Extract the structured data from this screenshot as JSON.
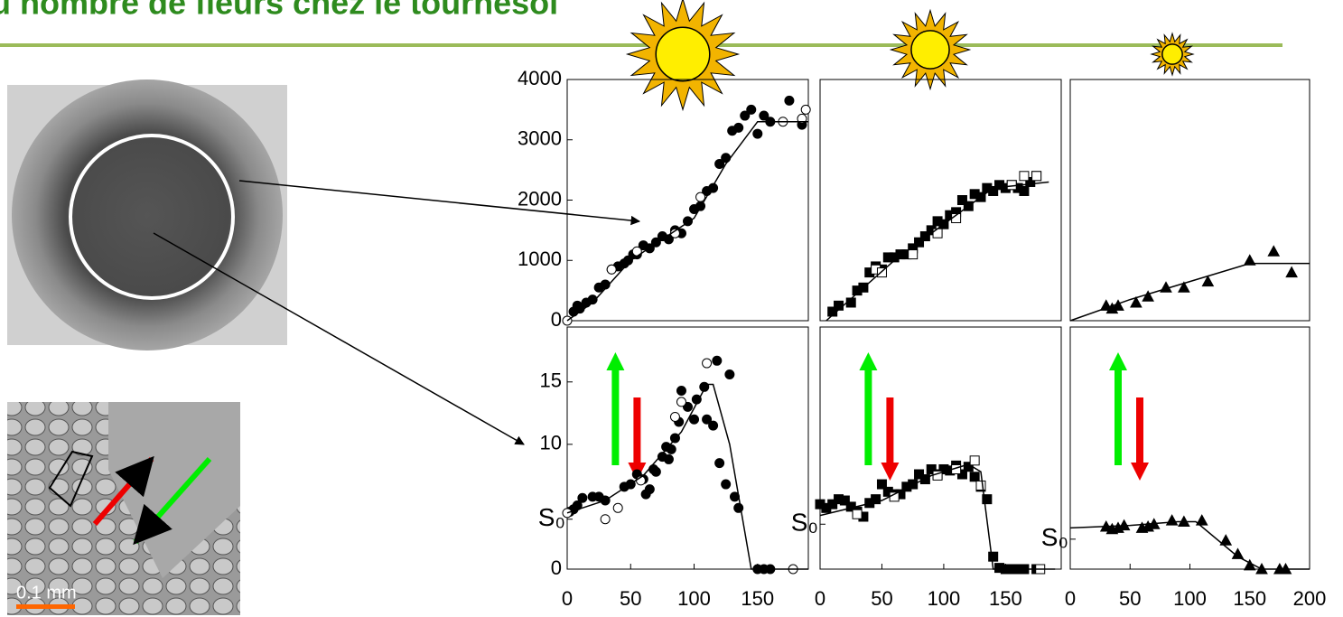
{
  "title": "u nombre de fleurs chez le tournesol",
  "scale_bar": "0.1 mm",
  "chart_data": [
    {
      "type": "scatter",
      "xlim": [
        0,
        190
      ],
      "ylim": [
        0,
        4000
      ],
      "yticks": [
        0,
        1000,
        2000,
        3000,
        4000
      ],
      "series": [
        {
          "marker": "circle",
          "filled": true,
          "color": "#000000",
          "x": [
            5,
            8,
            10,
            15,
            20,
            25,
            30,
            35,
            40,
            45,
            48,
            52,
            55,
            60,
            65,
            70,
            75,
            80,
            85,
            90,
            95,
            100,
            105,
            110,
            115,
            120,
            125,
            130,
            135,
            140,
            145,
            150,
            155,
            160,
            175,
            185
          ],
          "values": [
            150,
            250,
            200,
            300,
            350,
            550,
            600,
            850,
            900,
            950,
            1000,
            1100,
            1100,
            1250,
            1200,
            1300,
            1400,
            1350,
            1500,
            1450,
            1650,
            1850,
            1900,
            2150,
            2200,
            2600,
            2700,
            3150,
            3200,
            3400,
            3500,
            3100,
            3400,
            3300,
            3650,
            3250
          ]
        },
        {
          "marker": "circle",
          "filled": false,
          "color": "#000000",
          "x": [
            0,
            35,
            55,
            85,
            105,
            170,
            185,
            188
          ],
          "values": [
            0,
            850,
            1150,
            1450,
            2050,
            3300,
            3350,
            3500
          ]
        },
        {
          "marker": "line",
          "color": "#000000",
          "x": [
            0,
            20,
            50,
            100,
            125,
            150,
            190
          ],
          "values": [
            0,
            300,
            1000,
            1700,
            2600,
            3300,
            3300
          ]
        }
      ]
    },
    {
      "type": "scatter",
      "xlim": [
        0,
        195
      ],
      "ylim": [
        0,
        4000
      ],
      "series": [
        {
          "marker": "square",
          "filled": true,
          "color": "#000000",
          "x": [
            10,
            15,
            25,
            30,
            35,
            40,
            45,
            50,
            55,
            60,
            65,
            70,
            75,
            80,
            85,
            90,
            95,
            100,
            105,
            110,
            115,
            120,
            125,
            130,
            135,
            140,
            145,
            150,
            155,
            160,
            165,
            170,
            175
          ],
          "values": [
            150,
            250,
            300,
            500,
            550,
            800,
            900,
            850,
            1050,
            1050,
            1100,
            1100,
            1200,
            1300,
            1400,
            1500,
            1650,
            1600,
            1750,
            1800,
            2000,
            1900,
            2100,
            2050,
            2200,
            2150,
            2250,
            2200,
            2250,
            2200,
            2150,
            2300,
            2400
          ]
        },
        {
          "marker": "square",
          "filled": false,
          "color": "#000000",
          "x": [
            45,
            50,
            75,
            95,
            110,
            155,
            165,
            175
          ],
          "values": [
            850,
            800,
            1100,
            1450,
            1700,
            2250,
            2400,
            2400
          ]
        },
        {
          "marker": "line",
          "color": "#000000",
          "x": [
            5,
            60,
            140,
            185
          ],
          "values": [
            0,
            1000,
            2200,
            2300
          ]
        }
      ]
    },
    {
      "type": "scatter",
      "xlim": [
        0,
        200
      ],
      "ylim": [
        0,
        4000
      ],
      "series": [
        {
          "marker": "triangle",
          "filled": true,
          "color": "#000000",
          "x": [
            30,
            35,
            40,
            55,
            65,
            80,
            95,
            115,
            150,
            170,
            185
          ],
          "values": [
            250,
            200,
            250,
            300,
            400,
            550,
            550,
            650,
            1000,
            1150,
            800
          ]
        },
        {
          "marker": "line",
          "color": "#000000",
          "x": [
            0,
            50,
            100,
            150,
            200
          ],
          "values": [
            0,
            350,
            650,
            950,
            950
          ]
        }
      ]
    },
    {
      "type": "scatter",
      "xlim": [
        0,
        190
      ],
      "ylim": [
        0,
        19.4
      ],
      "xticks": [
        0,
        50,
        100,
        150
      ],
      "yticks": [
        0,
        10,
        15
      ],
      "s0_label": {
        "value": 4,
        "label": "S₀"
      },
      "arrows": {
        "up": "#00ee00",
        "down": "#ee0000"
      },
      "series": [
        {
          "marker": "circle",
          "filled": true,
          "color": "#000000",
          "x": [
            2,
            5,
            8,
            12,
            20,
            25,
            30,
            45,
            50,
            55,
            60,
            62,
            65,
            68,
            70,
            75,
            78,
            80,
            82,
            85,
            88,
            90,
            95,
            100,
            102,
            108,
            110,
            115,
            118,
            120,
            125,
            128,
            132,
            135,
            150,
            155,
            160
          ],
          "values": [
            4.6,
            4.8,
            5.1,
            5.7,
            5.8,
            5.8,
            5.5,
            6.6,
            6.8,
            7.6,
            7.2,
            6.0,
            6.4,
            8.0,
            7.8,
            9.0,
            9.8,
            8.8,
            9.6,
            10.5,
            11.8,
            14.3,
            13.0,
            12.0,
            13.6,
            14.6,
            12.0,
            11.5,
            16.7,
            8.5,
            6.8,
            15.6,
            5.8,
            4.9,
            0,
            0,
            0
          ]
        },
        {
          "marker": "circle",
          "filled": false,
          "color": "#000000",
          "x": [
            0,
            30,
            40,
            58,
            85,
            90,
            110,
            178
          ],
          "values": [
            4.5,
            4.0,
            4.9,
            7.1,
            12.2,
            13.4,
            16.5,
            0
          ]
        },
        {
          "marker": "line",
          "color": "#000000",
          "x": [
            0,
            30,
            60,
            90,
            110,
            115,
            128,
            145,
            190
          ],
          "values": [
            4.5,
            5.5,
            7.5,
            11,
            14.8,
            14.8,
            10,
            0,
            0
          ]
        }
      ]
    },
    {
      "type": "scatter",
      "xlim": [
        0,
        195
      ],
      "ylim": [
        0,
        19.4
      ],
      "xticks": [
        0,
        50,
        100,
        150
      ],
      "s0_label": {
        "value": 3.6,
        "label": "S₀"
      },
      "arrows": {
        "up": "#00ee00",
        "down": "#ee0000"
      },
      "series": [
        {
          "marker": "square",
          "filled": true,
          "color": "#000000",
          "x": [
            0,
            5,
            10,
            15,
            20,
            25,
            30,
            35,
            40,
            45,
            50,
            55,
            60,
            65,
            70,
            75,
            80,
            85,
            90,
            95,
            100,
            105,
            110,
            115,
            120,
            125,
            130,
            135,
            140,
            145,
            150,
            155,
            160,
            165,
            175
          ],
          "values": [
            5.2,
            4.9,
            5.2,
            5.6,
            5.5,
            5.0,
            4.6,
            4.2,
            5.3,
            5.6,
            6.8,
            6.2,
            6.0,
            6.0,
            6.6,
            6.8,
            7.6,
            7.2,
            8.0,
            7.6,
            8.0,
            7.9,
            8.3,
            7.6,
            8.2,
            7.4,
            6.6,
            5.6,
            1.0,
            0.1,
            0,
            0,
            0,
            0,
            0
          ]
        },
        {
          "marker": "square",
          "filled": false,
          "color": "#000000",
          "x": [
            30,
            60,
            95,
            110,
            125,
            130,
            178
          ],
          "values": [
            4.4,
            5.8,
            7.5,
            8.0,
            8.7,
            6.7,
            0
          ]
        },
        {
          "marker": "line",
          "color": "#000000",
          "x": [
            0,
            50,
            90,
            120,
            130,
            140,
            190
          ],
          "values": [
            4.3,
            5.5,
            7.5,
            8.4,
            7.8,
            0,
            0
          ]
        }
      ]
    },
    {
      "type": "scatter",
      "xlim": [
        0,
        200
      ],
      "ylim": [
        0,
        19.4
      ],
      "xticks": [
        0,
        50,
        100,
        150,
        200
      ],
      "s0_label": {
        "value": 2.4,
        "label": "S₀"
      },
      "arrows": {
        "up": "#00ee00",
        "down": "#ee0000"
      },
      "series": [
        {
          "marker": "triangle",
          "filled": true,
          "color": "#000000",
          "x": [
            30,
            35,
            40,
            45,
            60,
            65,
            70,
            85,
            95,
            110,
            130,
            140,
            150,
            160,
            175,
            180
          ],
          "values": [
            3.4,
            3.2,
            3.3,
            3.5,
            3.3,
            3.4,
            3.6,
            3.9,
            3.8,
            3.9,
            2.3,
            1.2,
            0.3,
            0,
            0,
            0
          ]
        },
        {
          "marker": "line",
          "color": "#000000",
          "x": [
            0,
            50,
            90,
            105,
            140,
            160,
            200
          ],
          "values": [
            3.3,
            3.5,
            3.8,
            3.8,
            1,
            0,
            0
          ]
        }
      ]
    }
  ]
}
